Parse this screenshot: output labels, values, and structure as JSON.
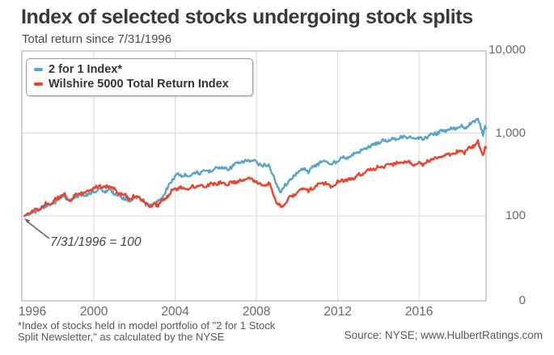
{
  "chart_data": {
    "type": "line",
    "title": "Index of selected stocks undergoing stock splits",
    "subtitle": "Total return since 7/31/1996",
    "grid": true,
    "legend_position": "top-left",
    "annotation": {
      "text": "7/31/1996 = 100"
    },
    "x_axis": {
      "ticks": [
        1996,
        2000,
        2004,
        2008,
        2012,
        2016
      ],
      "min_year": 1996.45,
      "max_year": 2019.3
    },
    "y_axis": {
      "scale": "log",
      "tick_labels": [
        "10,000",
        "1,000",
        "100",
        "0"
      ],
      "tick_values": [
        10000,
        1000,
        100,
        0
      ],
      "base_value": 100
    },
    "x": [
      1996.58,
      1996.8,
      1997.0,
      1997.25,
      1997.5,
      1997.75,
      1997.85,
      1998.1,
      1998.35,
      1998.55,
      1998.7,
      1998.85,
      1999.1,
      1999.35,
      1999.6,
      1999.85,
      2000.1,
      2000.3,
      2000.55,
      2000.8,
      2001.05,
      2001.3,
      2001.55,
      2001.75,
      2001.9,
      2002.1,
      2002.3,
      2002.55,
      2002.75,
      2002.95,
      2003.15,
      2003.4,
      2003.65,
      2003.9,
      2004.15,
      2004.4,
      2004.65,
      2004.9,
      2005.15,
      2005.4,
      2005.7,
      2006.0,
      2006.3,
      2006.55,
      2006.85,
      2007.15,
      2007.45,
      2007.65,
      2007.9,
      2008.1,
      2008.35,
      2008.6,
      2008.75,
      2008.95,
      2009.2,
      2009.45,
      2009.7,
      2010.0,
      2010.3,
      2010.55,
      2010.8,
      2011.1,
      2011.4,
      2011.65,
      2011.9,
      2012.2,
      2012.45,
      2012.75,
      2013.05,
      2013.35,
      2013.65,
      2013.95,
      2014.25,
      2014.6,
      2014.9,
      2015.2,
      2015.5,
      2015.7,
      2015.95,
      2016.15,
      2016.45,
      2016.75,
      2017.05,
      2017.35,
      2017.65,
      2017.95,
      2018.1,
      2018.2,
      2018.45,
      2018.7,
      2018.9,
      2019.05,
      2019.15,
      2019.25,
      2019.3
    ],
    "series": [
      {
        "name": "2 for 1 Index*",
        "color": "#5ba3c9",
        "values": [
          100,
          105,
          112,
          117,
          128,
          138,
          132,
          150,
          167,
          180,
          158,
          150,
          173,
          180,
          176,
          188,
          202,
          210,
          200,
          206,
          185,
          172,
          162,
          149,
          160,
          167,
          158,
          138,
          133,
          140,
          146,
          172,
          225,
          285,
          318,
          305,
          308,
          330,
          330,
          340,
          352,
          378,
          385,
          365,
          405,
          438,
          455,
          470,
          452,
          425,
          400,
          420,
          340,
          245,
          198,
          240,
          280,
          330,
          375,
          342,
          390,
          440,
          465,
          412,
          450,
          515,
          500,
          545,
          600,
          655,
          705,
          765,
          800,
          840,
          865,
          890,
          905,
          835,
          868,
          840,
          915,
          985,
          1030,
          1075,
          1120,
          1185,
          1240,
          1130,
          1265,
          1380,
          1475,
          1150,
          950,
          1170,
          1105
        ]
      },
      {
        "name": "Wilshire 5000 Total Return Index",
        "color": "#e8452f",
        "values": [
          100,
          106,
          114,
          121,
          133,
          144,
          137,
          156,
          172,
          185,
          162,
          154,
          180,
          190,
          188,
          203,
          220,
          232,
          222,
          228,
          203,
          188,
          175,
          159,
          170,
          174,
          162,
          140,
          131,
          137,
          136,
          155,
          180,
          205,
          220,
          213,
          214,
          225,
          226,
          231,
          238,
          247,
          250,
          240,
          255,
          265,
          272,
          278,
          268,
          250,
          237,
          246,
          205,
          152,
          127,
          150,
          170,
          196,
          215,
          197,
          222,
          243,
          252,
          224,
          245,
          275,
          267,
          287,
          313,
          338,
          360,
          386,
          400,
          418,
          428,
          440,
          447,
          415,
          432,
          420,
          458,
          492,
          515,
          537,
          560,
          592,
          620,
          570,
          645,
          710,
          785,
          600,
          530,
          665,
          652
        ]
      }
    ]
  },
  "footer": {
    "footnote_line1": "*Index of stocks held in model portfolio of \"2 for 1 Stock",
    "footnote_line2": "Split Newsletter,\" as calculated by the NYSE",
    "source": "Source: NYSE; www.HulbertRatings.com"
  },
  "colors": {
    "grid": "#d9d9d9",
    "plot_border": "#b3b3b3",
    "arrow": "#666666"
  }
}
